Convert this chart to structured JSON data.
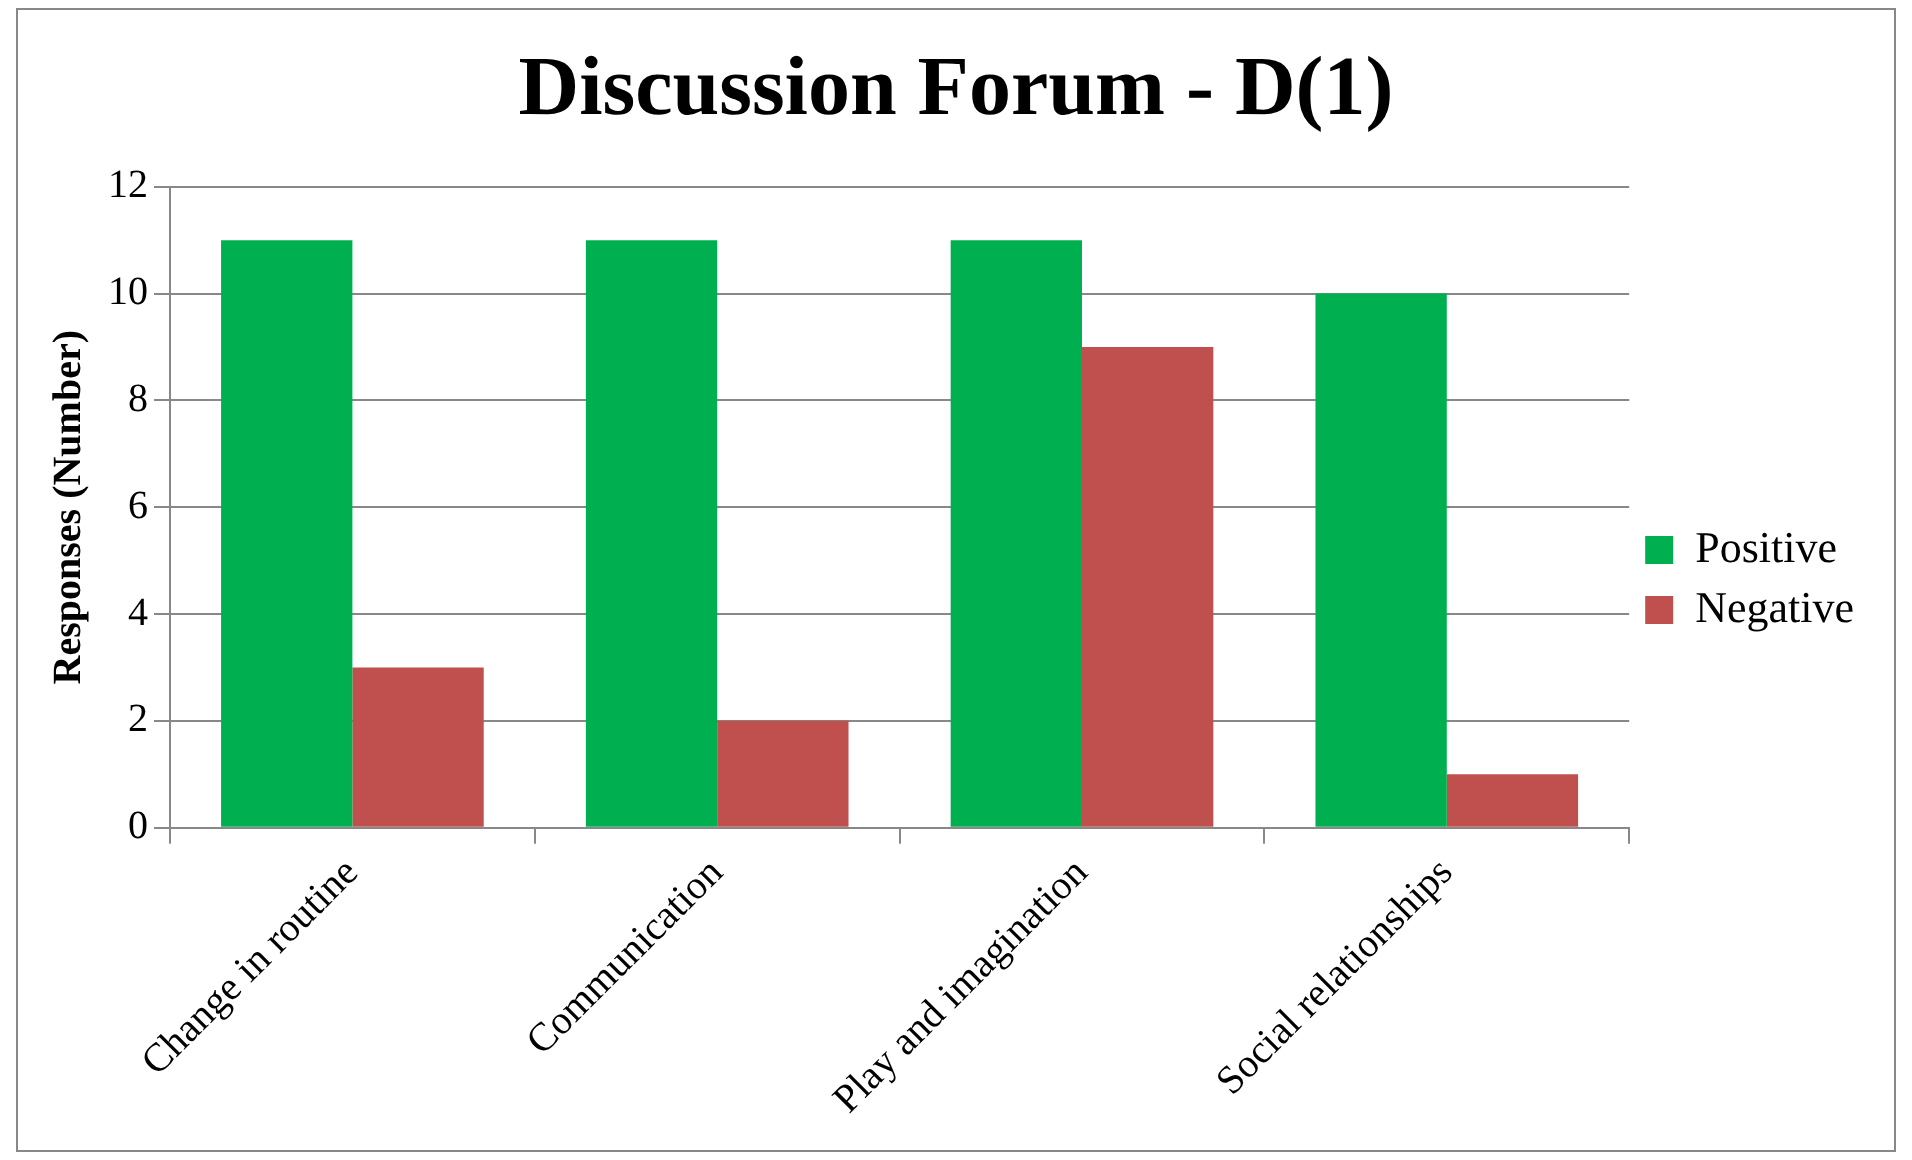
{
  "chart_data": {
    "type": "bar",
    "title": "Discussion Forum - D(1)",
    "ylabel": "Responses (Number)",
    "categories": [
      "Change in routine",
      "Communication",
      "Play and imagination",
      "Social relationships"
    ],
    "series": [
      {
        "name": "Positive",
        "color": "#00b050",
        "values": [
          11,
          11,
          11,
          10
        ]
      },
      {
        "name": "Negative",
        "color": "#c0504d",
        "values": [
          3,
          2,
          9,
          1
        ]
      }
    ],
    "ylim": [
      0,
      12
    ],
    "yticks": [
      0,
      2,
      4,
      6,
      8,
      10,
      12
    ],
    "grid": "y",
    "legend": "right"
  }
}
